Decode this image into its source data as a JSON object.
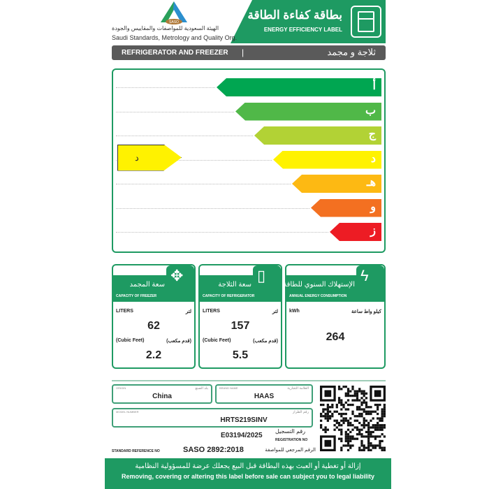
{
  "header": {
    "title_ar": "بطاقة كفاءة الطاقة",
    "title_en": "ENERGY EFFICIENCY LABEL",
    "org_ar": "الهيئة السعودية للمواصفات والمقاييس والجودة",
    "org_en": "Saudi Standards, Metrology and Quality Org.",
    "logo_text": "SASO"
  },
  "category": {
    "en": "REFRIGERATOR AND FREEZER",
    "sep": "|",
    "ar": "ثلاجة و مجمد"
  },
  "scale": {
    "classes": [
      {
        "letter": "أ",
        "color": "#00a651"
      },
      {
        "letter": "ب",
        "color": "#50b848"
      },
      {
        "letter": "ج",
        "color": "#b2d235"
      },
      {
        "letter": "د",
        "color": "#fff200"
      },
      {
        "letter": "هـ",
        "color": "#fdb913"
      },
      {
        "letter": "و",
        "color": "#f37021"
      },
      {
        "letter": "ز",
        "color": "#ed1c24"
      }
    ],
    "rating": "د",
    "rating_index": 3
  },
  "boxes": [
    {
      "title_ar": "سعة المجمد",
      "title_en": "CAPACITY OF FREEZER",
      "icon": "expand-arrows-icon",
      "unit_en": "LITERS",
      "unit_ar": "لتر",
      "value": "62",
      "unit2_en": "(Cubic Feet)",
      "unit2_ar": "(قدم مكعب)",
      "value2": "2.2"
    },
    {
      "title_ar": "سعة الثلاجة",
      "title_en": "CAPACITY OF REFRIGERATOR",
      "icon": "milk-carton-icon",
      "unit_en": "LITERS",
      "unit_ar": "لتر",
      "value": "157",
      "unit2_en": "(Cubic Feet)",
      "unit2_ar": "(قدم مكعب)",
      "value2": "5.5"
    },
    {
      "title_ar": "الإستهلاك السنوي للطاقة",
      "title_en": "ANNUAL ENERGY CONSUMPTION",
      "icon": "lightning-icon",
      "unit_en": "kWh",
      "unit_ar": "كيلو واط ساعة",
      "value": "264"
    }
  ],
  "info": {
    "origin_label_en": "ORIGIN",
    "origin_label_ar": "بلد الصنع",
    "origin": "China",
    "brand_label_en": "BRAND NAME",
    "brand_label_ar": "العلامة التجارية",
    "brand": "HAAS",
    "model_label_en": "MODEL NUMBER",
    "model_label_ar": "رقم الطراز",
    "model": "HRTS219SINV",
    "reg_label_ar": "رقم التسجيل",
    "reg_label_en": "REGISTRATION NO",
    "reg": "E03194/2025",
    "std_label_en": "STANDARD REFERENCE NO",
    "std_label_ar": "الرقم المرجعي للمواصفة",
    "std": "SASO 2892:2018"
  },
  "footer": {
    "ar": "إزالة أو تغطية أو العبث بهذه البطاقة قبل البيع يجعلك عرضة للمسؤولية النظامية",
    "en": "Removing, covering or altering this label before sale can subject you to legal liability"
  }
}
